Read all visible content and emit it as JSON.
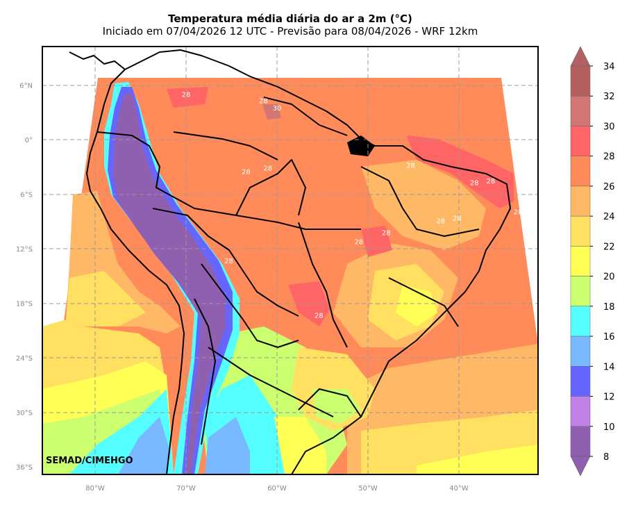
{
  "title": "Temperatura média diária do ar a 2m (°C)",
  "subtitle": "Iniciado em 07/04/2026 12 UTC - Previsão para 08/04/2026 - WRF 12km",
  "watermark": "SEMAD/CIMEHGO",
  "latitude_ticks": [
    "6°N",
    "0°",
    "6°S",
    "12°S",
    "18°S",
    "24°S",
    "30°S",
    "36°S"
  ],
  "longitude_ticks": [
    "80°W",
    "70°W",
    "60°W",
    "50°W",
    "40°W"
  ],
  "colorbar": {
    "labels": [
      "34",
      "32",
      "30",
      "28",
      "26",
      "24",
      "22",
      "20",
      "18",
      "16",
      "14",
      "12",
      "10",
      "8"
    ],
    "bins": [
      {
        "from": 32,
        "to": 34,
        "color": "#b56060"
      },
      {
        "from": 30,
        "to": 32,
        "color": "#d47575"
      },
      {
        "from": 28,
        "to": 30,
        "color": "#ff6565"
      },
      {
        "from": 26,
        "to": 28,
        "color": "#ff8a5a"
      },
      {
        "from": 24,
        "to": 26,
        "color": "#ffb865"
      },
      {
        "from": 22,
        "to": 24,
        "color": "#ffe060"
      },
      {
        "from": 20,
        "to": 22,
        "color": "#ffff55"
      },
      {
        "from": 18,
        "to": 20,
        "color": "#ccff70"
      },
      {
        "from": 16,
        "to": 18,
        "color": "#55ffff"
      },
      {
        "from": 14,
        "to": 16,
        "color": "#77b8ff"
      },
      {
        "from": 12,
        "to": 14,
        "color": "#6666ff"
      },
      {
        "from": 10,
        "to": 12,
        "color": "#c080e6"
      },
      {
        "from": 8,
        "to": 10,
        "color": "#9060b0"
      }
    ]
  },
  "contour_labels": [
    {
      "text": "28",
      "lon": -70,
      "lat": 4.7
    },
    {
      "text": "28",
      "lon": -61.5,
      "lat": 4.0
    },
    {
      "text": "30",
      "lon": -60.0,
      "lat": 3.2
    },
    {
      "text": "28",
      "lon": -63.4,
      "lat": -3.8
    },
    {
      "text": "28",
      "lon": -61.0,
      "lat": -3.4
    },
    {
      "text": "28",
      "lon": -45.3,
      "lat": -3.1
    },
    {
      "text": "28",
      "lon": -38.3,
      "lat": -5.0
    },
    {
      "text": "28",
      "lon": -36.5,
      "lat": -4.8
    },
    {
      "text": "28",
      "lon": -33.5,
      "lat": -8.2
    },
    {
      "text": "28",
      "lon": -42.0,
      "lat": -9.2
    },
    {
      "text": "28",
      "lon": -40.2,
      "lat": -8.9
    },
    {
      "text": "28",
      "lon": -51.0,
      "lat": -11.5
    },
    {
      "text": "28",
      "lon": -48.0,
      "lat": -10.5
    },
    {
      "text": "28",
      "lon": -65.3,
      "lat": -13.6
    },
    {
      "text": "28",
      "lon": -55.4,
      "lat": -19.6
    }
  ]
}
